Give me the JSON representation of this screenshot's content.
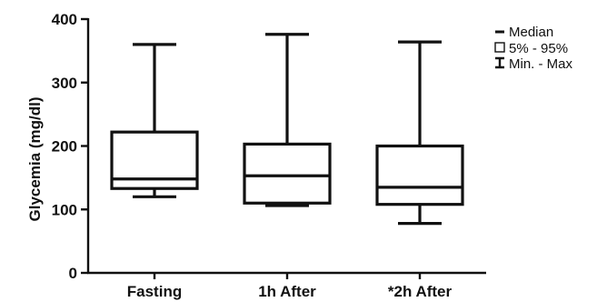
{
  "chart_data": {
    "type": "box",
    "title": "",
    "xlabel": "",
    "ylabel": "Glycemia (mg/dl)",
    "ylim": [
      0,
      400
    ],
    "yticks": [
      0,
      100,
      200,
      300,
      400
    ],
    "categories": [
      "Fasting",
      "1h After",
      "*2h After"
    ],
    "boxes": [
      {
        "category": "Fasting",
        "min": 120,
        "q1": 133,
        "median": 148,
        "q3": 222,
        "max": 360
      },
      {
        "category": "1h After",
        "min": 106,
        "q1": 110,
        "median": 153,
        "q3": 203,
        "max": 376
      },
      {
        "category": "*2h After",
        "min": 78,
        "q1": 108,
        "median": 135,
        "q3": 200,
        "max": 364
      }
    ],
    "legend": {
      "position": "top-right",
      "entries": [
        "Median",
        "5% - 95%",
        "Min. - Max"
      ]
    },
    "grid": false
  }
}
